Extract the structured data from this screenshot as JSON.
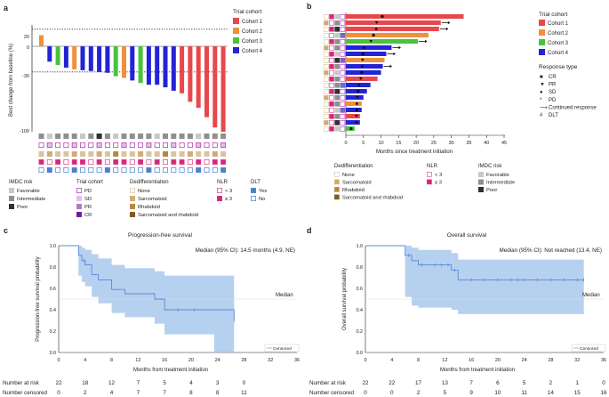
{
  "panel_labels": {
    "a": "a",
    "b": "b",
    "c": "c",
    "d": "d"
  },
  "colors": {
    "cohort1": "#e8474c",
    "cohort2": "#f0913a",
    "cohort3": "#49c33b",
    "cohort4": "#2323d8",
    "imdc_fav": "#c8c8c8",
    "imdc_int": "#8f8f8f",
    "imdc_poor": "#303030",
    "tc_pd": "#b22fb0",
    "tc_sd": "#e2c0e8",
    "tc_pr": "#b078c8",
    "tc_cr": "#6b1a9a",
    "dd_none": "#d9c4a2",
    "dd_sarc": "#d2aa78",
    "dd_rhab": "#b7873f",
    "dd_both": "#7d5a1e",
    "nlr_low": "#e23b8b",
    "nlr_high": "#d4287a",
    "dlt_yes": "#4b7fd0",
    "km_line": "#5b8ad6",
    "km_band": "#9dc0ea"
  },
  "legends": {
    "trial_cohort_title": "Trial cohort",
    "cohorts": [
      "Cohort 1",
      "Cohort 2",
      "Cohort 3",
      "Cohort 4"
    ],
    "response_title": "Response type",
    "responses": [
      "CR",
      "PR",
      "SD",
      "PD",
      "Continued response",
      "DLT"
    ],
    "response_symbols": [
      "■",
      "▼",
      "●",
      "*",
      "⟶",
      "#"
    ],
    "imdc_title": "IMDC risk",
    "imdc": [
      "Favorable",
      "Intermediate",
      "Poor"
    ],
    "tc_title": "Trial cohort",
    "tc": [
      "PD",
      "SD",
      "PR",
      "CR"
    ],
    "dd_title": "Dedifferentiation",
    "dd": [
      "None",
      "Sarcomatoid",
      "Rhabdoid",
      "Sarcomatoid and rhabdoid"
    ],
    "nlr_title": "NLR",
    "nlr": [
      "< 3",
      "≥ 3"
    ],
    "dlt_title": "DLT",
    "dlt": [
      "Yes",
      "No"
    ]
  },
  "chart_data": [
    {
      "id": "a",
      "type": "bar",
      "title": "",
      "ylabel": "Best change from baseline (%)",
      "xlabel": "",
      "ylim": [
        -100,
        25
      ],
      "yticks": [
        "20",
        "0",
        "-30",
        "-100"
      ],
      "reference_lines": [
        20,
        -30
      ],
      "values": [
        13,
        -18,
        -22,
        -25,
        -27,
        -28,
        -29,
        -30,
        -31,
        -35,
        -37,
        -40,
        -43,
        -45,
        -45,
        -48,
        -52,
        -55,
        -65,
        -72,
        -83,
        -95,
        -100
      ],
      "cohort": [
        2,
        4,
        3,
        4,
        2,
        4,
        4,
        4,
        4,
        3,
        2,
        4,
        3,
        4,
        4,
        4,
        4,
        1,
        1,
        1,
        1,
        1,
        1
      ]
    },
    {
      "id": "b",
      "type": "bar",
      "orientation": "horizontal",
      "xlabel": "Months since treatment initiation",
      "xlim": [
        0,
        45
      ],
      "xticks": [
        "0",
        "5",
        "10",
        "15",
        "20",
        "25",
        "30",
        "35",
        "40",
        "45"
      ],
      "values": [
        33.5,
        27,
        26.5,
        23.5,
        20.5,
        13,
        11.5,
        11,
        10.5,
        10,
        9,
        7,
        6,
        5,
        4.5,
        4.5,
        4,
        4,
        2.5
      ],
      "cohort": [
        1,
        1,
        1,
        2,
        3,
        4,
        4,
        2,
        4,
        4,
        1,
        4,
        4,
        4,
        2,
        4,
        1,
        4,
        3
      ],
      "continued": [
        false,
        true,
        true,
        false,
        true,
        true,
        true,
        false,
        true,
        false,
        false,
        false,
        false,
        false,
        false,
        false,
        false,
        false,
        false
      ]
    },
    {
      "id": "c",
      "type": "line",
      "title": "Progression-free survival",
      "annotation": "Median (95% CI): 14.5 months (4.9, NE)",
      "median_label": "Median",
      "censored_label": "Censored",
      "ylabel": "Progression-free survival probability",
      "xlabel": "Months from treatment initiation",
      "xlim": [
        0,
        36
      ],
      "ylim": [
        0,
        1
      ],
      "xticks": [
        "0",
        "4",
        "8",
        "12",
        "16",
        "20",
        "24",
        "28",
        "32",
        "36"
      ],
      "yticks": [
        "0.0",
        "0.2",
        "0.4",
        "0.6",
        "0.8",
        "1.0"
      ],
      "steps_x": [
        0,
        3,
        3.5,
        4,
        5,
        6,
        8,
        10,
        14.5,
        16,
        23.5,
        26.5
      ],
      "steps_y": [
        1.0,
        0.91,
        0.86,
        0.82,
        0.73,
        0.68,
        0.59,
        0.55,
        0.5,
        0.4,
        0.4,
        0.3
      ],
      "band_upper": [
        1.0,
        1.0,
        0.98,
        0.96,
        0.92,
        0.88,
        0.82,
        0.79,
        0.76,
        0.72,
        0.72
      ],
      "band_lower": [
        1.0,
        0.72,
        0.66,
        0.62,
        0.52,
        0.46,
        0.37,
        0.33,
        0.27,
        0.17,
        0.0
      ],
      "censor_x": [
        3.8,
        18,
        20.5,
        26.5
      ],
      "risk_title": "Number at risk",
      "risk": [
        "22",
        "18",
        "12",
        "7",
        "5",
        "4",
        "3",
        "0"
      ],
      "censored_title": "Number censored",
      "censored": [
        "0",
        "2",
        "4",
        "7",
        "7",
        "8",
        "8",
        "11"
      ],
      "risk_x": [
        0,
        4,
        8,
        12,
        16,
        20,
        24,
        28
      ]
    },
    {
      "id": "d",
      "type": "line",
      "title": "Overall survival",
      "annotation": "Median (95% CI): Not reached (13.4, NE)",
      "median_label": "Median",
      "censored_label": "Censored",
      "ylabel": "Overall survival probability",
      "xlabel": "Months from treatment initiation",
      "xlim": [
        0,
        36
      ],
      "ylim": [
        0,
        1
      ],
      "xticks": [
        "0",
        "4",
        "8",
        "12",
        "16",
        "20",
        "24",
        "28",
        "32",
        "36"
      ],
      "yticks": [
        "0.0",
        "0.2",
        "0.4",
        "0.6",
        "0.8",
        "1.0"
      ],
      "steps_x": [
        0,
        6,
        7,
        8,
        9,
        13,
        14,
        33
      ],
      "steps_y": [
        1.0,
        0.91,
        0.86,
        0.82,
        0.82,
        0.77,
        0.68,
        0.68
      ],
      "band_upper": [
        1.0,
        1.0,
        0.98,
        0.96,
        0.96,
        0.93,
        0.87
      ],
      "band_lower": [
        1.0,
        0.52,
        0.44,
        0.42,
        0.42,
        0.4,
        0.36
      ],
      "censor_x": [
        6.5,
        8.5,
        10.5,
        11.5,
        12.5,
        13.5,
        16,
        18,
        20,
        22,
        23,
        24,
        26,
        28,
        30,
        32,
        33
      ],
      "risk_title": "Number at risk",
      "risk": [
        "22",
        "22",
        "17",
        "13",
        "7",
        "6",
        "5",
        "2",
        "1",
        "0"
      ],
      "censored_title": "Number censored",
      "censored": [
        "0",
        "0",
        "2",
        "5",
        "9",
        "10",
        "11",
        "14",
        "15",
        "16"
      ],
      "risk_x": [
        0,
        4,
        8,
        12,
        16,
        20,
        24,
        28,
        32,
        36
      ]
    }
  ]
}
